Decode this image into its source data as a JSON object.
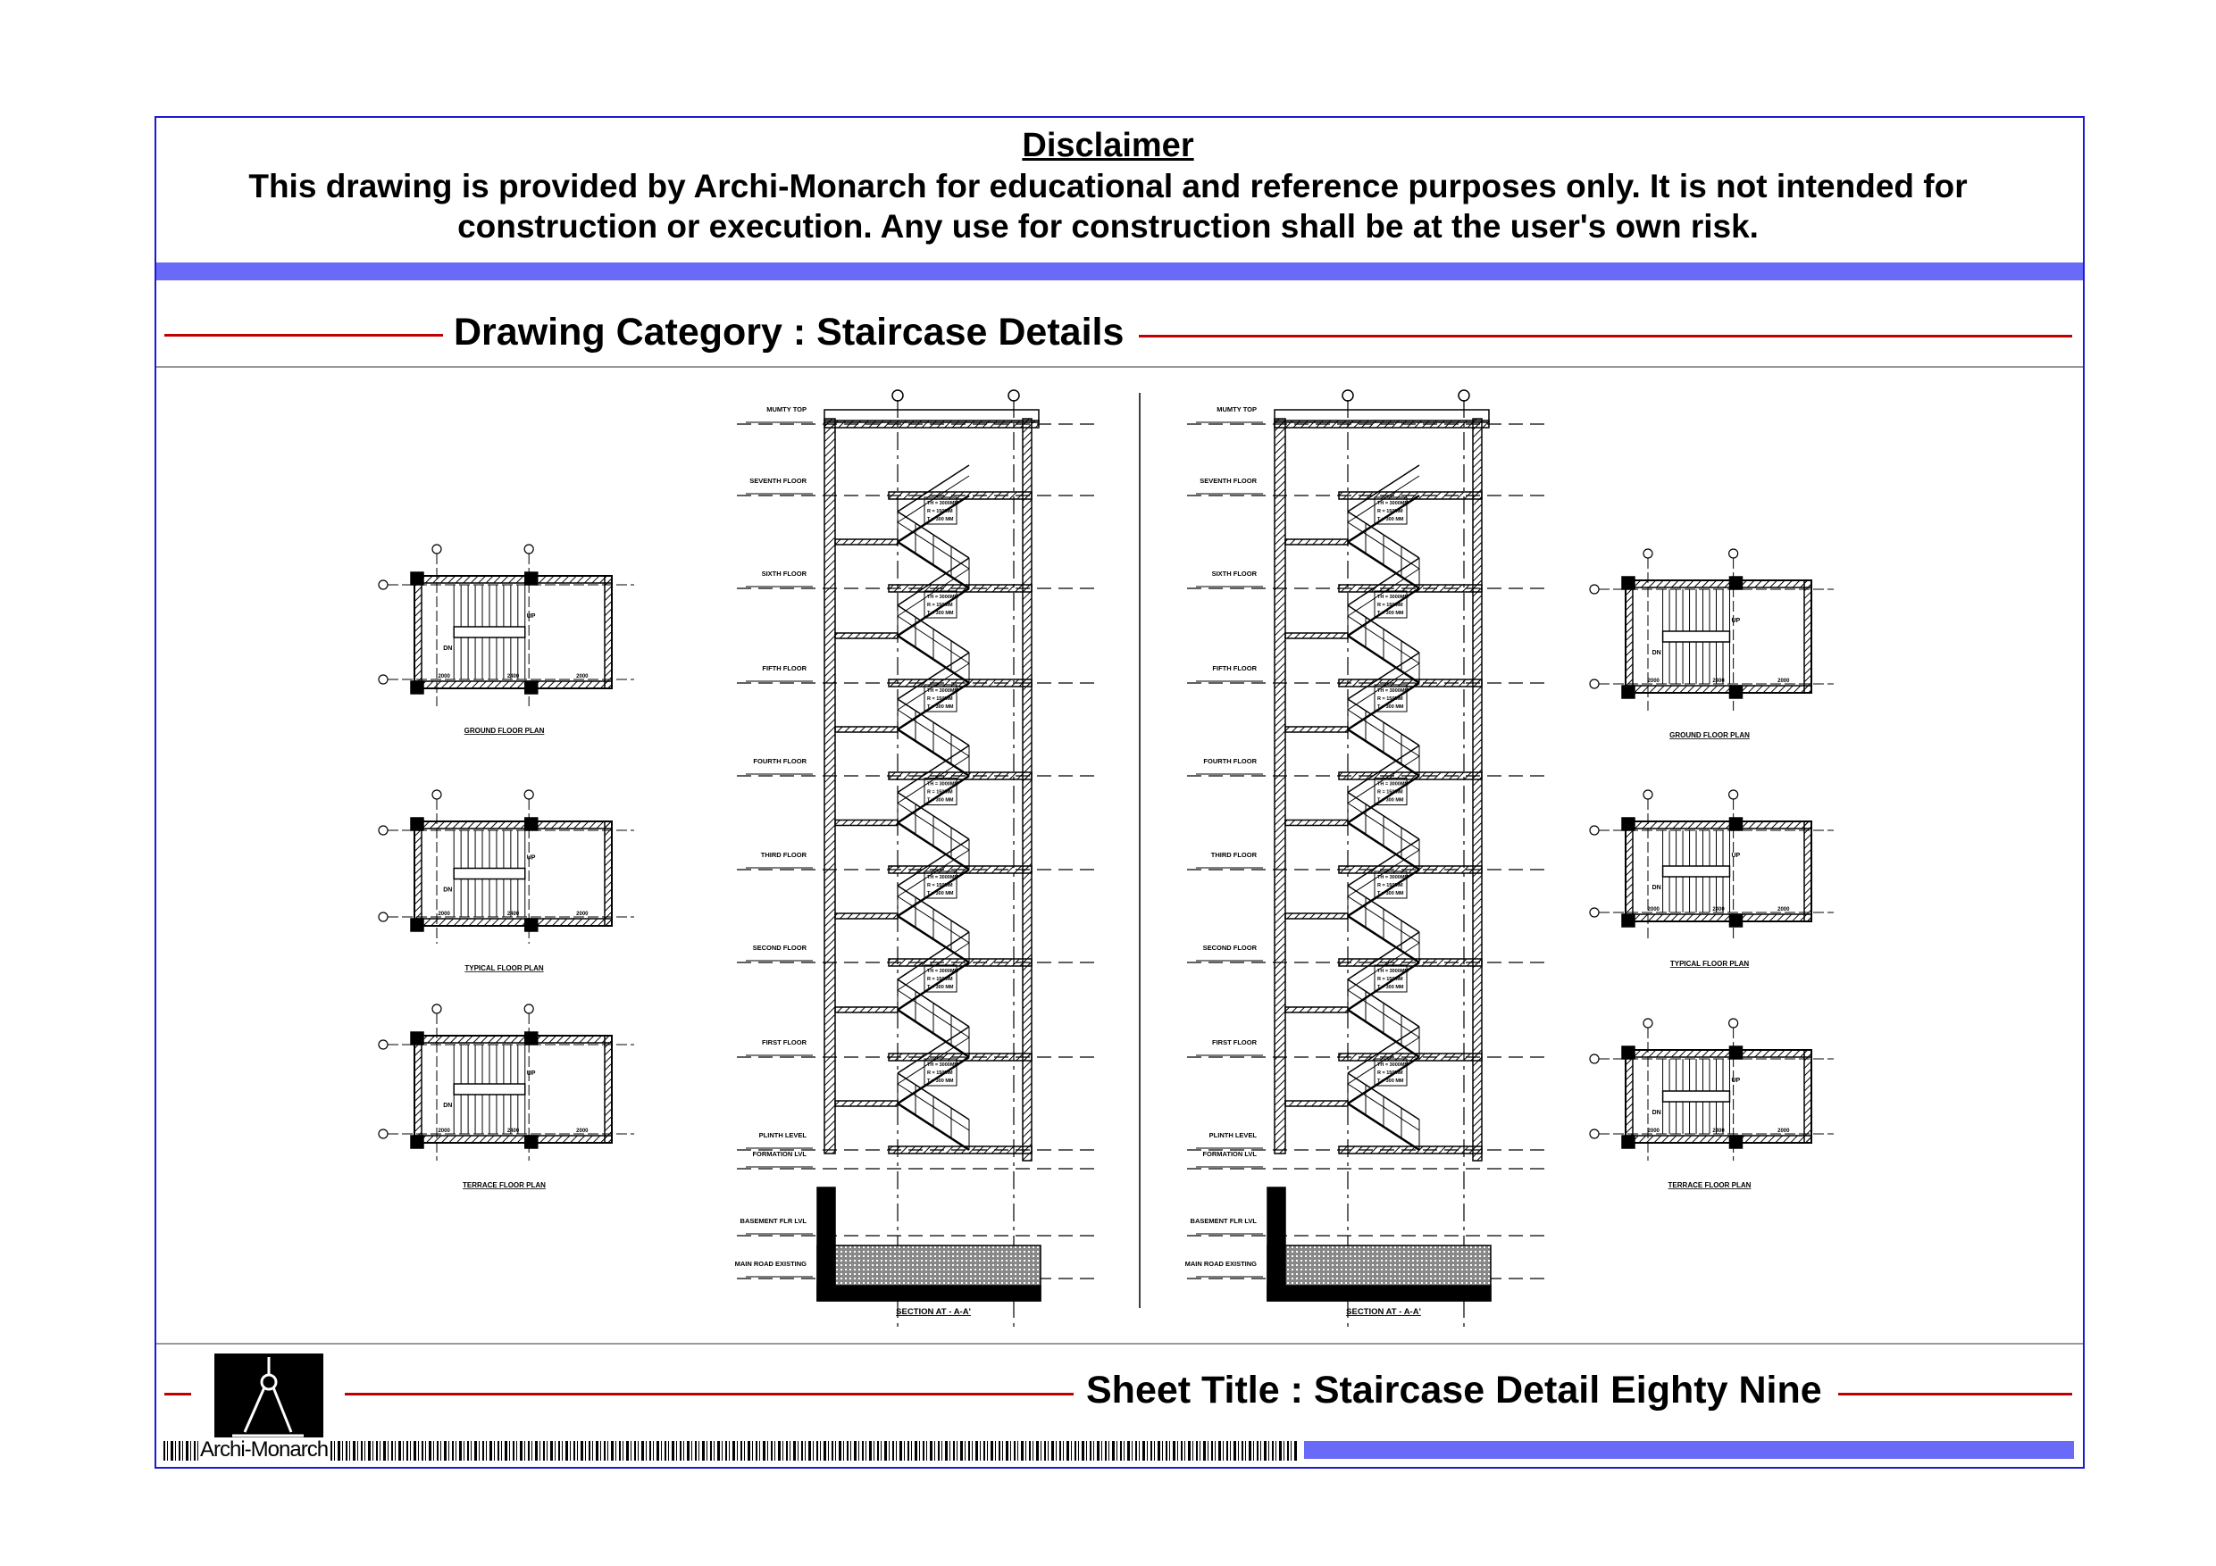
{
  "disclaimer": {
    "title": "Disclaimer",
    "body": "This drawing is provided by Archi-Monarch for educational and reference purposes only. It is not intended for construction or execution. Any use for construction shall be at the user's own risk."
  },
  "category": "Drawing Category : Staircase Details",
  "sheet_title": "Sheet Title : Staircase Detail Eighty Nine",
  "logo": {
    "text": "Archi-Monarch",
    "icon": "drafting-compass-icon"
  },
  "colors": {
    "frame": "#1a1ad0",
    "band": "#6a6af8",
    "rule": "#c00000"
  },
  "drawing": {
    "section_title": "SECTION AT - A-A'",
    "levels": [
      "MUMTY TOP",
      "SEVENTH FLOOR",
      "SIXTH FLOOR",
      "FIFTH FLOOR",
      "FOURTH FLOOR",
      "THIRD FLOOR",
      "SECOND FLOOR",
      "FIRST FLOOR",
      "PLINTH LEVEL",
      "FORMATION LVL",
      "BASEMENT FLR LVL",
      "MAIN ROAD EXISTING"
    ],
    "plans": [
      "GROUND FLOOR PLAN",
      "TYPICAL FLOOR PLAN",
      "TERRACE FLOOR PLAN"
    ],
    "stair_note": [
      "TH = 3000MM",
      "R = 150MM",
      "T = 300 MM"
    ],
    "plan_dims": [
      "2000",
      "2400",
      "2000"
    ],
    "plan_marks": [
      "UP",
      "DN"
    ]
  }
}
